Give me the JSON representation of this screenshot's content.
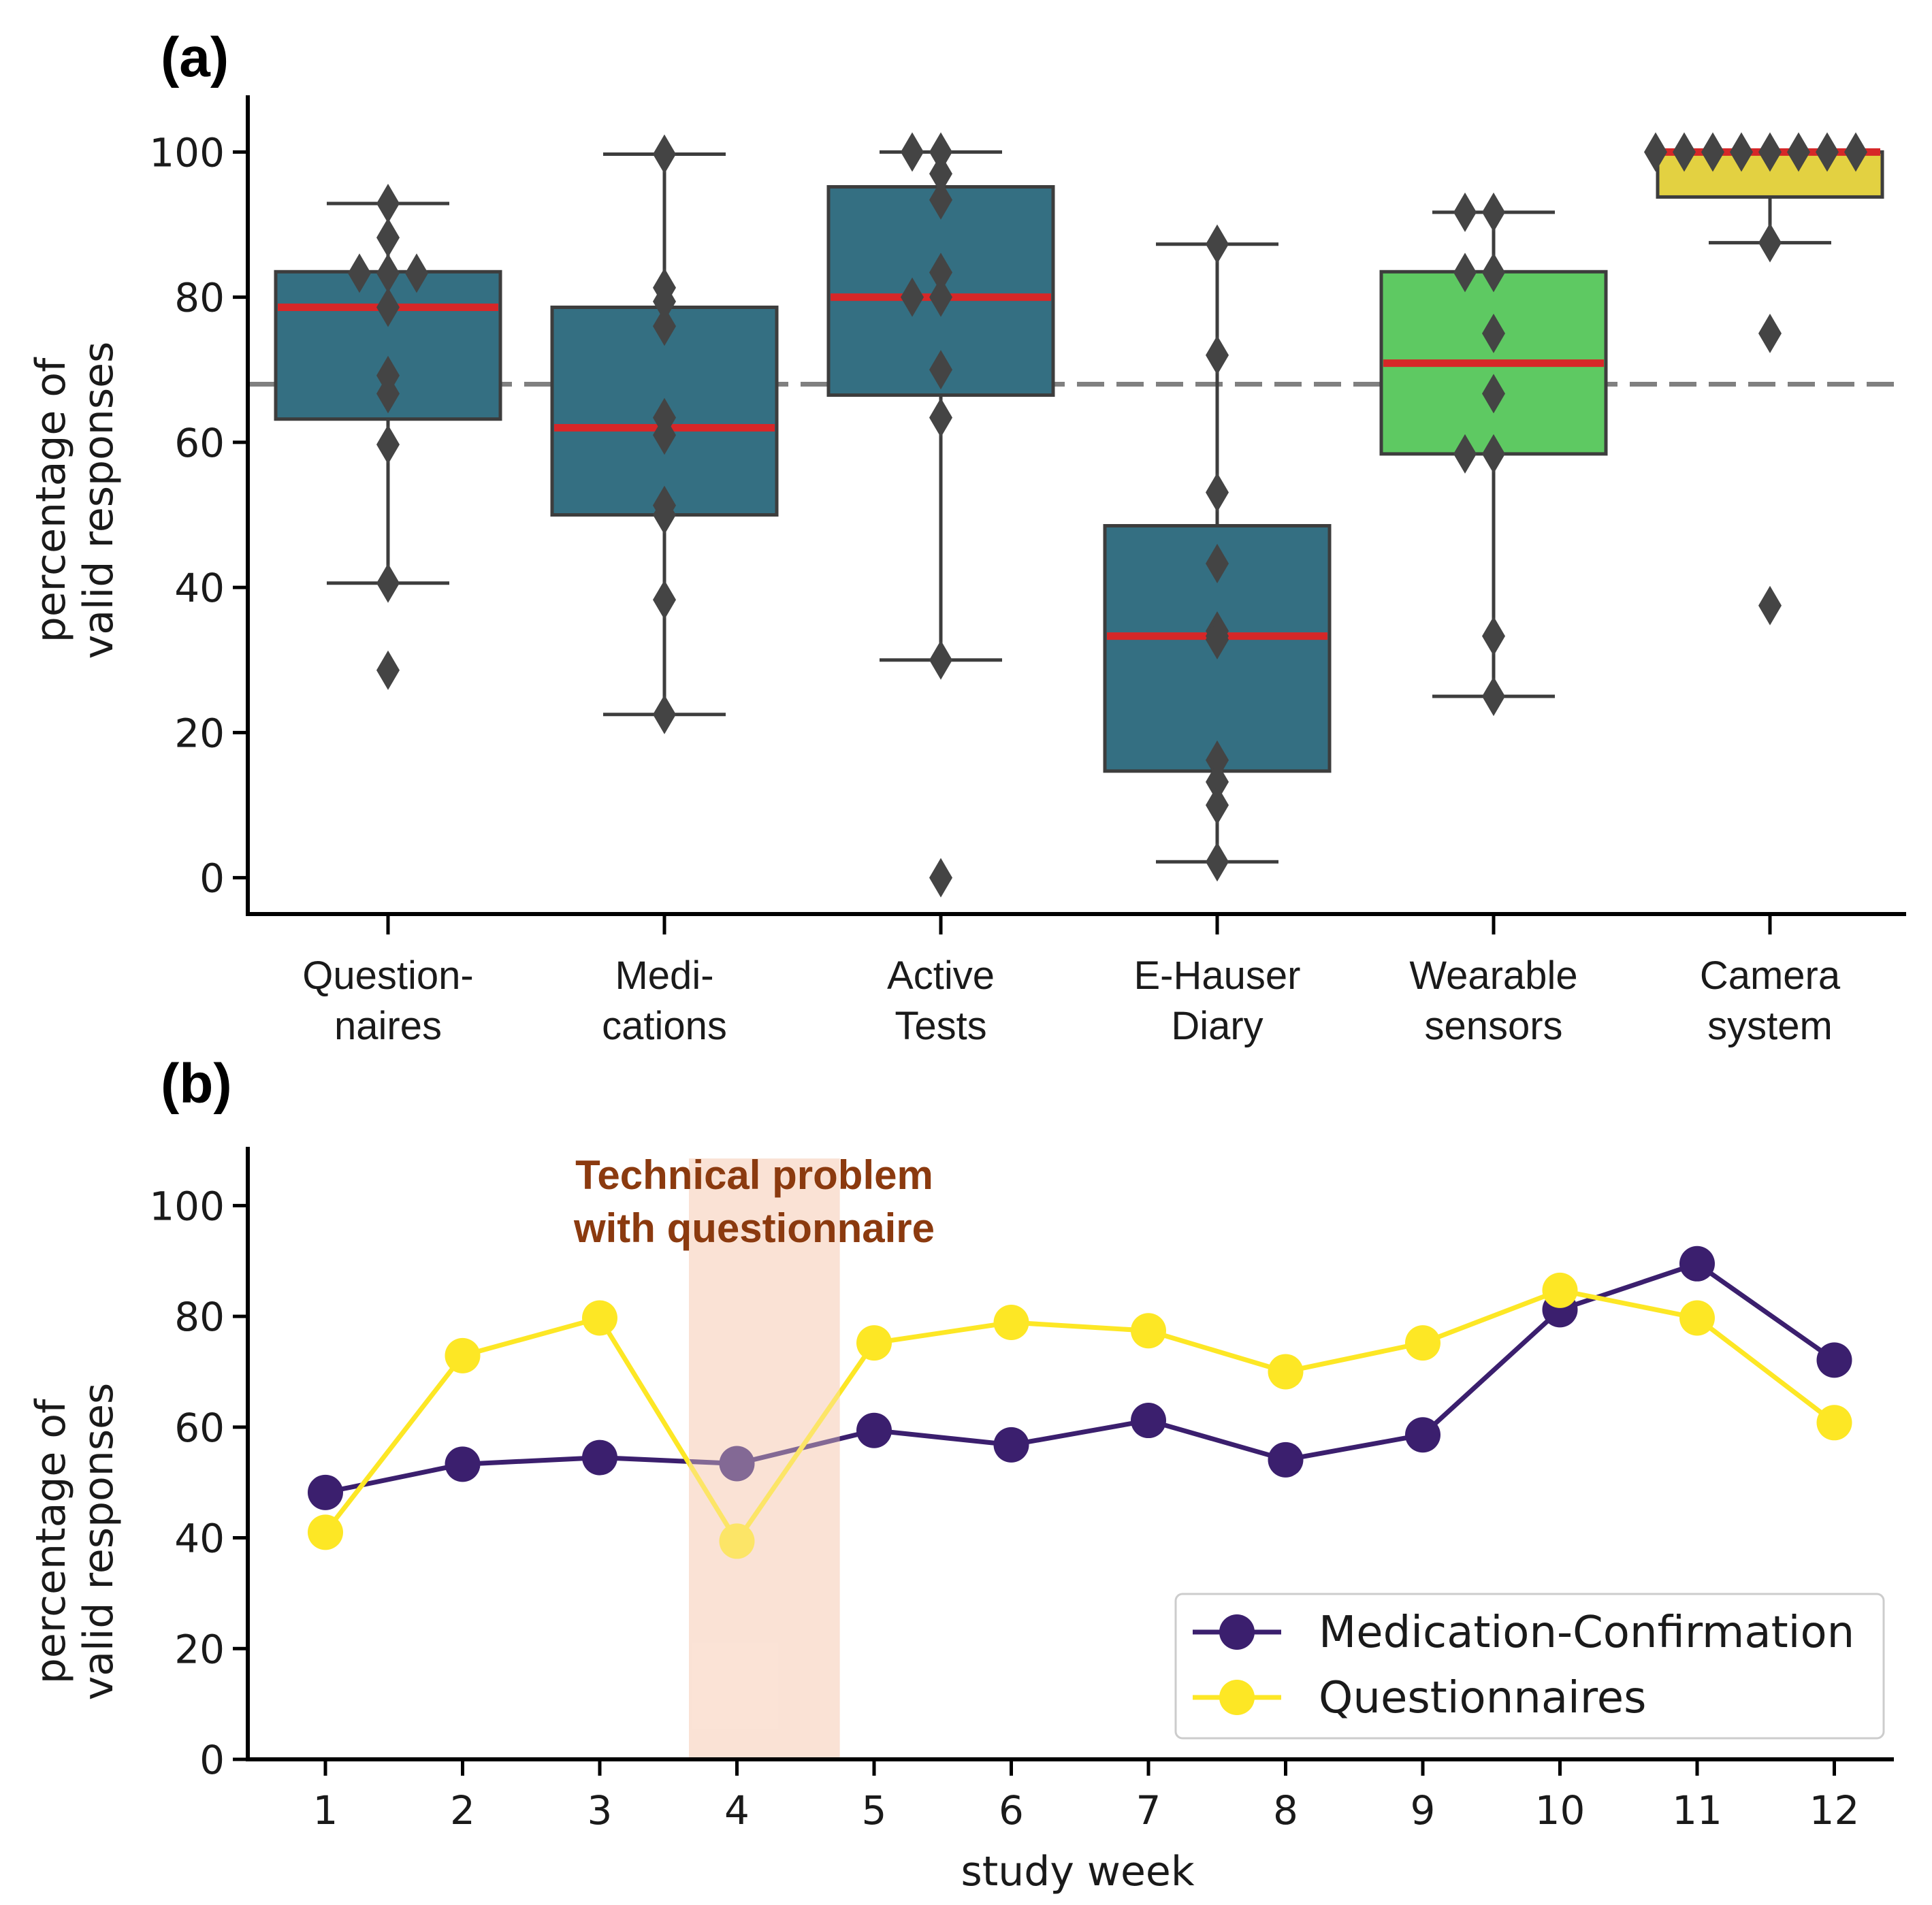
{
  "colors": {
    "box_blue": "#346f82",
    "box_green": "#5ec962",
    "box_yellow": "#e3d141",
    "median_red": "#d62728",
    "edge": "#3d3d3d",
    "ref_line": "#808080",
    "medication": "#3b1f6e",
    "questionnaires": "#fde725",
    "highlight": "#fbe3d6",
    "annotation": "#8b3a0f"
  },
  "chart_data": [
    {
      "type": "box",
      "panel_label": "(a)",
      "ylabel_line1": "percentage of",
      "ylabel_line2": "valid responses",
      "ylim": [
        -5,
        105
      ],
      "yticks": [
        0,
        20,
        40,
        60,
        80,
        100
      ],
      "reference_line": 68,
      "categories": [
        {
          "line1": "Question-",
          "line2": "naires",
          "color": "box_blue",
          "q1": 63.2,
          "median": 78.6,
          "q3": 83.5,
          "whisker_low": 40.6,
          "whisker_high": 92.9,
          "points": [
            92.9,
            88.2,
            83.3,
            83.3,
            83.3,
            78.6,
            69.2,
            66.7,
            59.7,
            40.6,
            28.6
          ]
        },
        {
          "line1": "Medi-",
          "line2": "cations",
          "color": "box_blue",
          "q1": 50.0,
          "median": 62.0,
          "q3": 78.6,
          "whisker_low": 22.5,
          "whisker_high": 99.7,
          "points": [
            99.7,
            81.3,
            79.4,
            76.0,
            63.4,
            61.0,
            51.3,
            50.0,
            38.3,
            22.5
          ]
        },
        {
          "line1": "Active",
          "line2": "Tests",
          "color": "box_blue",
          "q1": 66.5,
          "median": 80.0,
          "q3": 95.2,
          "whisker_low": 30.0,
          "whisker_high": 100.0,
          "points": [
            100.0,
            100.0,
            97.0,
            93.4,
            83.4,
            80.0,
            80.0,
            70.0,
            63.4,
            30.0,
            0.0
          ]
        },
        {
          "line1": "E-Hauser",
          "line2": "Diary",
          "color": "box_blue",
          "q1": 14.7,
          "median": 33.3,
          "q3": 48.5,
          "whisker_low": 2.2,
          "whisker_high": 87.3,
          "points": [
            87.3,
            72.0,
            53.1,
            43.3,
            34.0,
            33.3,
            32.8,
            16.2,
            13.2,
            10.0,
            2.2
          ]
        },
        {
          "line1": "Wearable",
          "line2": "sensors",
          "color": "box_green",
          "q1": 58.4,
          "median": 70.9,
          "q3": 83.5,
          "whisker_low": 25.0,
          "whisker_high": 91.7,
          "points": [
            91.7,
            91.7,
            83.4,
            83.4,
            75.0,
            66.7,
            58.4,
            58.4,
            33.3,
            25.0
          ]
        },
        {
          "line1": "Camera",
          "line2": "system",
          "color": "box_yellow",
          "q1": 93.8,
          "median": 100.0,
          "q3": 100.0,
          "whisker_low": 87.5,
          "whisker_high": 100.0,
          "points": [
            100,
            100,
            100,
            100,
            100,
            100,
            100,
            100,
            87.5,
            75.0,
            37.5
          ]
        }
      ]
    },
    {
      "type": "line",
      "panel_label": "(b)",
      "ylabel_line1": "percentage of",
      "ylabel_line2": "valid responses",
      "xlabel": "study week",
      "x": [
        1,
        2,
        3,
        4,
        5,
        6,
        7,
        8,
        9,
        10,
        11,
        12
      ],
      "ylim": [
        0,
        110
      ],
      "yticks": [
        0,
        20,
        40,
        60,
        80,
        100
      ],
      "highlight_x_range": [
        3.65,
        4.75
      ],
      "annotation_line1": "Technical problem",
      "annotation_line2": "with questionnaire",
      "legend_position": "lower-right",
      "series": [
        {
          "name": "Medication-Confirmation",
          "color": "medication",
          "values": [
            48.2,
            53.3,
            54.5,
            53.4,
            59.4,
            56.8,
            61.2,
            54.1,
            58.6,
            81.2,
            89.5,
            72.1
          ]
        },
        {
          "name": "Questionnaires",
          "color": "questionnaires",
          "values": [
            41.0,
            72.9,
            79.7,
            39.4,
            75.2,
            78.9,
            77.4,
            70.0,
            75.2,
            84.7,
            79.7,
            60.8
          ]
        }
      ]
    }
  ]
}
